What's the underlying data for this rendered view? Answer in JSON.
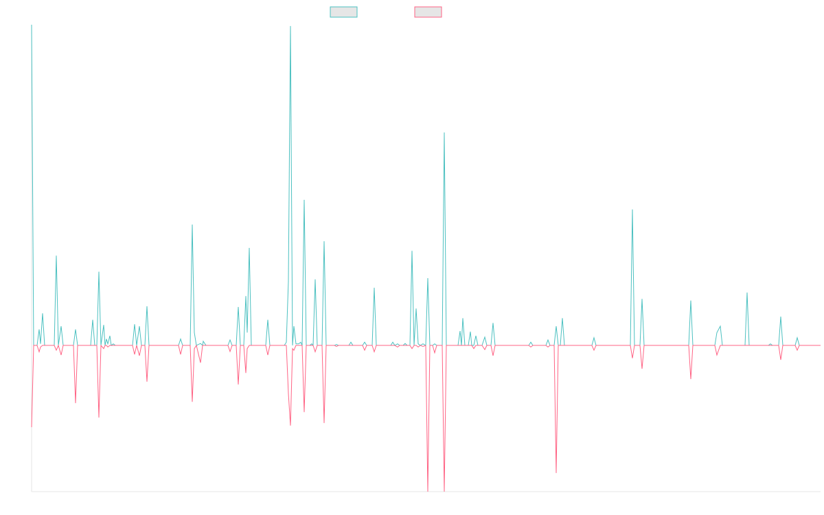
{
  "chart_data": {
    "type": "line",
    "x": [
      0,
      3,
      8,
      11,
      13,
      16,
      19,
      33,
      36,
      39,
      43,
      46,
      61,
      64,
      67,
      86,
      89,
      92,
      95,
      98,
      101,
      105,
      107,
      109,
      111,
      114,
      116,
      119,
      122,
      147,
      150,
      153,
      157,
      160,
      165,
      168,
      171,
      214,
      217,
      220,
      231,
      234,
      237,
      240,
      246,
      249,
      250,
      254,
      286,
      289,
      292,
      298,
      301,
      304,
      309,
      312,
      314,
      317,
      320,
      341,
      344,
      347,
      368,
      371,
      374,
      377,
      380,
      382,
      385,
      389,
      392,
      394,
      397,
      400,
      405,
      408,
      410,
      413,
      416,
      423,
      426,
      429,
      441,
      444,
      447,
      462,
      465,
      468,
      482,
      485,
      488,
      496,
      499,
      502,
      523,
      526,
      529,
      533,
      536,
      541,
      544,
      547,
      551,
      554,
      557,
      560,
      563,
      566,
      570,
      574,
      577,
      580,
      584,
      587,
      590,
      598,
      601,
      604,
      621,
      624,
      626,
      628,
      631,
      636,
      639,
      641,
      644,
      647,
      650,
      656,
      660,
      663,
      669,
      672,
      675,
      724,
      727,
      730,
      749,
      752,
      755,
      761,
      764,
      767,
      770,
      773,
      776,
      816,
      819,
      822,
      872,
      875,
      878,
      886,
      889,
      892,
      957,
      960,
      963,
      995,
      998,
      1003,
      1006,
      1039,
      1042,
      1045,
      1073,
      1076,
      1079,
      1088,
      1091,
      1094,
      1112,
      1115,
      1118,
      1149
    ],
    "series": [
      {
        "color": "#4bc0c0",
        "values": [
          100,
          0,
          0,
          5,
          0.5,
          10,
          0,
          0,
          28,
          0,
          6,
          0,
          0,
          5,
          0,
          0,
          8,
          0,
          0,
          23,
          0,
          6.4,
          0,
          2,
          0.5,
          3,
          0,
          0.5,
          0,
          0,
          6.6,
          0,
          6,
          0,
          0,
          12.2,
          0,
          0,
          2,
          0,
          0,
          37.7,
          4,
          0,
          0.6,
          0,
          1.3,
          0,
          0,
          1.7,
          0,
          0,
          12,
          0,
          0,
          15.4,
          4,
          30.4,
          0,
          0,
          8,
          0,
          0,
          1,
          20,
          99.6,
          0,
          6,
          0.5,
          0.5,
          1,
          0,
          45.4,
          0,
          0,
          0.5,
          0,
          20.6,
          0,
          0,
          32.5,
          0,
          0,
          0.3,
          0,
          0,
          1,
          0,
          0,
          1,
          0,
          0,
          18,
          0,
          0,
          1,
          0,
          0.5,
          0,
          0,
          0.6,
          0,
          0,
          29.5,
          0,
          11.5,
          0.5,
          0,
          0.5,
          0,
          21,
          0,
          0,
          0.5,
          0,
          0,
          66.4,
          0,
          0,
          4.5,
          0,
          8.5,
          0,
          0,
          4.3,
          0,
          0,
          3,
          0,
          0,
          2.6,
          0,
          0,
          7,
          0,
          0,
          1,
          0,
          0,
          1.7,
          0,
          0,
          6,
          0,
          0,
          8.5,
          0,
          0,
          2.4,
          0,
          0,
          42.4,
          0,
          0,
          14.5,
          0,
          0,
          14,
          0,
          0,
          4,
          6,
          0,
          0,
          16.5,
          0,
          0,
          0.5,
          0,
          0,
          9,
          0,
          0,
          2.4,
          0,
          0
        ]
      },
      {
        "color": "#ff6384",
        "values": [
          -25.5,
          0,
          0,
          -2,
          -0.5,
          0,
          0,
          0,
          -1.5,
          0,
          -3,
          0,
          0,
          -18,
          0,
          0,
          0,
          0,
          0,
          -22.5,
          0,
          -1,
          0,
          0,
          -0.5,
          0,
          0,
          0,
          0,
          0,
          -2.8,
          0,
          -3.2,
          0,
          0,
          -11.3,
          0,
          0,
          -2.8,
          0,
          0,
          -17.6,
          -1,
          0,
          -5.4,
          0,
          0,
          0,
          0,
          -1.9,
          0,
          0,
          -12.2,
          0,
          0,
          -8.6,
          -1,
          0,
          0,
          0,
          -3,
          0,
          0,
          0,
          -15,
          -25,
          -1,
          -1.5,
          0,
          0,
          0,
          0,
          -20.8,
          0,
          0,
          0,
          0,
          -2,
          0,
          0,
          -24.2,
          0,
          0,
          -0.3,
          0,
          0,
          0,
          0,
          0,
          -1.5,
          0,
          0,
          -2,
          0,
          0,
          0,
          0,
          -0.5,
          0,
          0,
          0,
          0,
          0,
          -1,
          0,
          0,
          -0.5,
          0,
          -0.3,
          0,
          -45.6,
          0,
          0,
          -2.3,
          0,
          0,
          -45.6,
          0,
          0,
          0,
          0,
          0,
          0,
          0,
          0,
          0,
          -1,
          0,
          0,
          0,
          -1.3,
          0,
          0,
          -3.2,
          0,
          0,
          -0.5,
          0,
          0,
          -0.5,
          0,
          0,
          -39.8,
          0,
          0,
          0,
          0,
          0,
          -1.5,
          0,
          0,
          -4,
          0,
          0,
          -7.3,
          0,
          0,
          -10.5,
          0,
          0,
          -3,
          0,
          0,
          0,
          0,
          0,
          0,
          0,
          0,
          0,
          -4.5,
          0,
          0,
          -1.5,
          0,
          0
        ]
      }
    ],
    "xlim": [
      0,
      1149
    ],
    "ylim": [
      -45.6,
      100
    ]
  }
}
